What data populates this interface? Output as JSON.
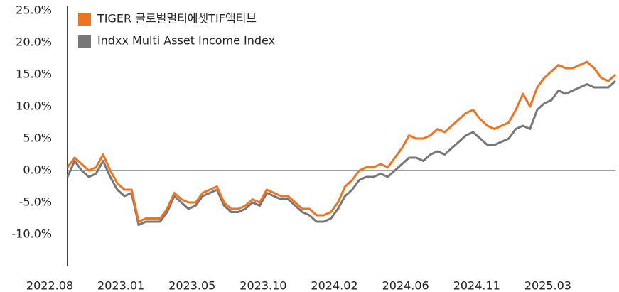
{
  "chart_data": {
    "type": "line",
    "categories": [
      "2022.08",
      null,
      null,
      null,
      null,
      null,
      null,
      null,
      null,
      null,
      "2023.01",
      null,
      null,
      null,
      null,
      null,
      null,
      null,
      null,
      null,
      "2023.05",
      null,
      null,
      null,
      null,
      null,
      null,
      null,
      null,
      null,
      "2023.10",
      null,
      null,
      null,
      null,
      null,
      null,
      null,
      null,
      null,
      "2024.02",
      null,
      null,
      null,
      null,
      null,
      null,
      null,
      null,
      null,
      "2024.06",
      null,
      null,
      null,
      null,
      null,
      null,
      null,
      null,
      null,
      "2024.11",
      null,
      null,
      null,
      null,
      null,
      null,
      null,
      null,
      null,
      "2025.03",
      null,
      null,
      null,
      null,
      null,
      null,
      null
    ],
    "series": [
      {
        "name": "TIGER 글로벌멀티에셋TIF액티브",
        "color": "#f07320",
        "values": [
          0.5,
          2,
          1,
          0,
          0.5,
          2.5,
          0,
          -2,
          -3,
          -3,
          -8,
          -7.5,
          -7.5,
          -7.5,
          -6,
          -3.5,
          -4.5,
          -5,
          -5,
          -3.5,
          -3,
          -2.5,
          -5,
          -6,
          -6,
          -5.5,
          -4.5,
          -5,
          -3,
          -3.5,
          -4,
          -4,
          -5,
          -6,
          -6,
          -7,
          -7,
          -6.5,
          -5,
          -2.5,
          -1.5,
          0,
          0.5,
          0.5,
          1,
          0.5,
          2,
          3.5,
          5.5,
          5,
          5,
          5.5,
          6.5,
          6,
          7,
          8,
          9,
          9.5,
          8,
          7,
          6.5,
          7,
          7.5,
          9.5,
          12,
          10,
          13,
          14.5,
          15.5,
          16.5,
          16,
          16,
          16.5,
          17,
          16,
          14.5,
          14,
          15
        ]
      },
      {
        "name": "Indxx Multi Asset Income Index",
        "color": "#777777",
        "values": [
          -1,
          1.5,
          0,
          -1,
          -0.5,
          1.5,
          -1,
          -3,
          -4,
          -3.5,
          -8.5,
          -8,
          -8,
          -8,
          -6.5,
          -4,
          -5,
          -6,
          -5.5,
          -4,
          -3.5,
          -3,
          -5.5,
          -6.5,
          -6.5,
          -6,
          -5,
          -5.5,
          -3.5,
          -4,
          -4.5,
          -4.5,
          -5.5,
          -6.5,
          -7,
          -8,
          -8,
          -7.5,
          -6,
          -4,
          -3,
          -1.5,
          -1,
          -1,
          -0.5,
          -1,
          0,
          1,
          2,
          2,
          1.5,
          2.5,
          3,
          2.5,
          3.5,
          4.5,
          5.5,
          6,
          5,
          4,
          4,
          4.5,
          5,
          6.5,
          7,
          6.5,
          9.5,
          10.5,
          11,
          12.5,
          12,
          12.5,
          13,
          13.5,
          13,
          13,
          13,
          14
        ]
      }
    ],
    "ylim": [
      -15,
      25
    ],
    "yticks": [
      {
        "value": 25,
        "label": "25.0%"
      },
      {
        "value": 20,
        "label": "20.0%"
      },
      {
        "value": 15,
        "label": "15.0%"
      },
      {
        "value": 10,
        "label": "10.0%"
      },
      {
        "value": 5,
        "label": "5.0%"
      },
      {
        "value": 0,
        "label": "0.0%"
      },
      {
        "value": -5,
        "label": "-5.0%"
      },
      {
        "value": -10,
        "label": "-10.0%"
      }
    ],
    "legend": "top-left"
  }
}
